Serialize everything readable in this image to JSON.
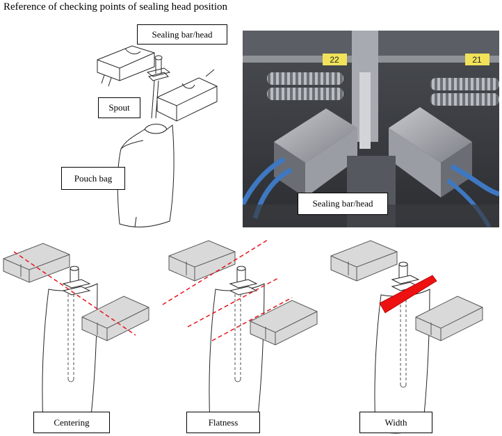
{
  "title": "Reference of checking points of  sealing head position",
  "labels": {
    "sealing_bar_head_top": "Sealing bar/head",
    "spout": "Spout",
    "pouch_bag": "Pouch bag",
    "sealing_bar_head_photo": "Sealing bar/head",
    "centering": "Centering",
    "flatness": "Flatness",
    "width": "Width"
  },
  "photo_tags": {
    "left_number": "22",
    "right_number": "21"
  },
  "colors": {
    "check_line": "#e8141b",
    "seal_highlight": "#ee1111",
    "block_fill": "#d9d9d9",
    "block_stroke": "#555555",
    "photo_metal": "#8a8e95",
    "photo_tag": "#f1e25a",
    "hose": "#3f78c2"
  }
}
